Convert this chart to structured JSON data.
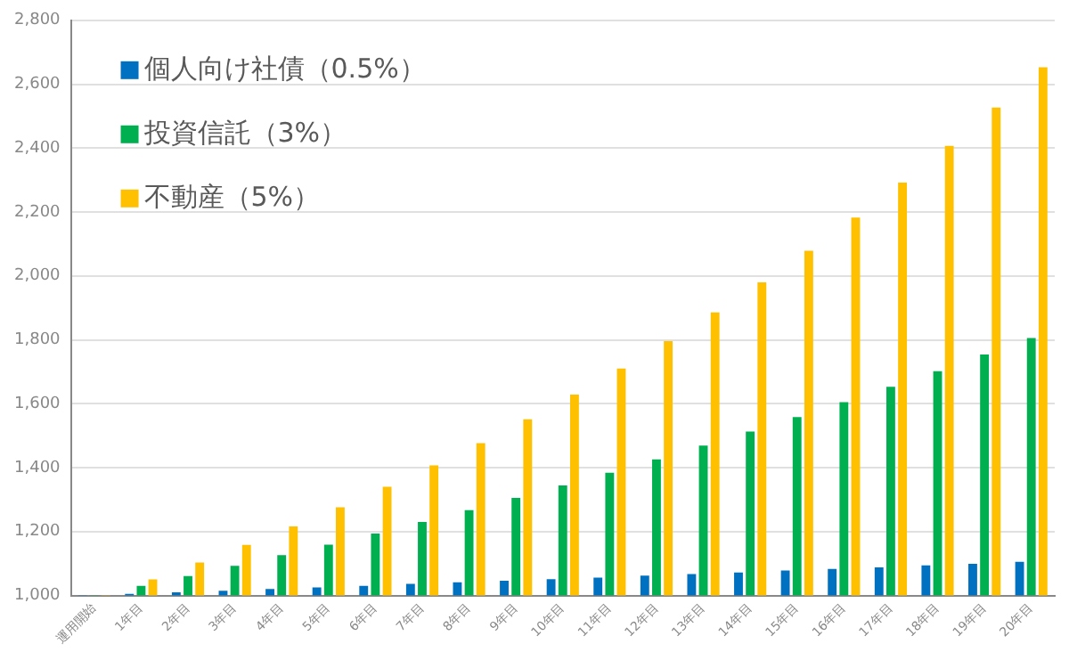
{
  "chart_data": {
    "type": "bar",
    "categories": [
      "運用開始",
      "1年目",
      "2年目",
      "3年目",
      "4年目",
      "5年目",
      "6年目",
      "7年目",
      "8年目",
      "9年目",
      "10年目",
      "11年目",
      "12年目",
      "13年目",
      "14年目",
      "15年目",
      "16年目",
      "17年目",
      "18年目",
      "19年目",
      "20年目"
    ],
    "series": [
      {
        "name": "個人向け社債（0.5%）",
        "color": "#0070c0",
        "values": [
          1000,
          1005,
          1010,
          1015,
          1020,
          1025,
          1030,
          1036,
          1041,
          1046,
          1051,
          1056,
          1062,
          1067,
          1072,
          1078,
          1083,
          1088,
          1094,
          1099,
          1105
        ]
      },
      {
        "name": "投資信託（3%）",
        "color": "#00b050",
        "values": [
          1000,
          1030,
          1061,
          1093,
          1126,
          1159,
          1194,
          1230,
          1267,
          1305,
          1344,
          1384,
          1426,
          1469,
          1513,
          1558,
          1605,
          1653,
          1702,
          1754,
          1806
        ]
      },
      {
        "name": "不動産（5%）",
        "color": "#ffc000",
        "values": [
          1000,
          1050,
          1103,
          1158,
          1216,
          1276,
          1340,
          1407,
          1477,
          1551,
          1629,
          1710,
          1796,
          1886,
          1980,
          2079,
          2183,
          2292,
          2407,
          2527,
          2653
        ]
      }
    ],
    "ylim": [
      1000,
      2800
    ],
    "yticks": [
      {
        "value": 1000,
        "label": "1,000"
      },
      {
        "value": 1200,
        "label": "1,200"
      },
      {
        "value": 1400,
        "label": "1,400"
      },
      {
        "value": 1600,
        "label": "1,600"
      },
      {
        "value": 1800,
        "label": "1,800"
      },
      {
        "value": 2000,
        "label": "2,000"
      },
      {
        "value": 2200,
        "label": "2,200"
      },
      {
        "value": 2400,
        "label": "2,400"
      },
      {
        "value": 2600,
        "label": "2,600"
      },
      {
        "value": 2800,
        "label": "2,800"
      }
    ],
    "grid": "y",
    "legend": "top left"
  }
}
